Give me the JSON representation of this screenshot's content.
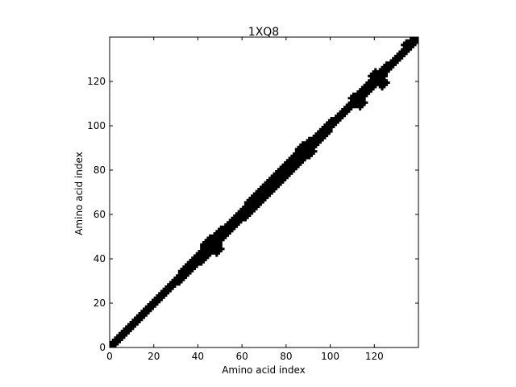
{
  "chart_data": {
    "type": "heatmap",
    "title": "1XQ8",
    "xlabel": "Amino acid index",
    "ylabel": "Amino acid index",
    "xlim": [
      0,
      140
    ],
    "ylim": [
      0,
      140
    ],
    "x_ticks": [
      0,
      20,
      40,
      60,
      80,
      100,
      120
    ],
    "y_ticks": [
      0,
      20,
      40,
      60,
      80,
      100,
      120
    ],
    "grid": false,
    "colormap": [
      "#ffffff",
      "#000000"
    ],
    "band_halfwidth": [
      {
        "x": 0,
        "w": 2
      },
      {
        "x": 30,
        "w": 2
      },
      {
        "x": 35,
        "w": 3
      },
      {
        "x": 40,
        "w": 2
      },
      {
        "x": 45,
        "w": 4
      },
      {
        "x": 50,
        "w": 3
      },
      {
        "x": 60,
        "w": 3
      },
      {
        "x": 65,
        "w": 4
      },
      {
        "x": 75,
        "w": 3
      },
      {
        "x": 85,
        "w": 4
      },
      {
        "x": 90,
        "w": 3
      },
      {
        "x": 100,
        "w": 2
      },
      {
        "x": 110,
        "w": 2
      },
      {
        "x": 120,
        "w": 3
      },
      {
        "x": 125,
        "w": 2
      },
      {
        "x": 140,
        "w": 2
      }
    ],
    "contact_blobs": [
      {
        "x": 45,
        "y": 46,
        "r": 4
      },
      {
        "x": 48,
        "y": 44,
        "r": 3
      },
      {
        "x": 87,
        "y": 89,
        "r": 3
      },
      {
        "x": 90,
        "y": 88,
        "r": 3
      },
      {
        "x": 110,
        "y": 112,
        "r": 2
      },
      {
        "x": 113,
        "y": 110,
        "r": 3
      },
      {
        "x": 120,
        "y": 122,
        "r": 3
      },
      {
        "x": 123,
        "y": 119,
        "r": 3
      },
      {
        "x": 134,
        "y": 136,
        "r": 2
      },
      {
        "x": 137,
        "y": 138,
        "r": 2
      }
    ]
  }
}
